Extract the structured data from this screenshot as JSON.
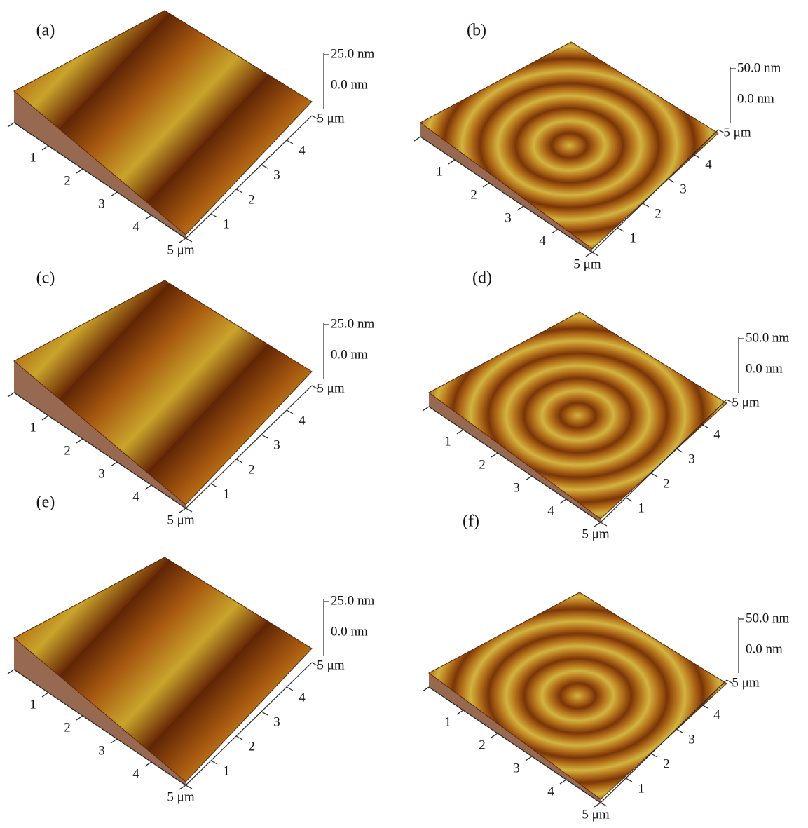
{
  "panels": [
    {
      "label": "(a)",
      "z_labels": [
        "25.0 nm",
        "0.0 nm"
      ],
      "x_tick_labels": [
        "1",
        "2",
        "3",
        "4"
      ],
      "x_end": "5 μm",
      "y_tick_labels": [
        "1",
        "2",
        "3",
        "4"
      ],
      "y_end": "5 μm"
    },
    {
      "label": "(b)",
      "z_labels": [
        "50.0 nm",
        "0.0 nm"
      ],
      "x_tick_labels": [
        "1",
        "2",
        "3",
        "4"
      ],
      "x_end": "5 μm",
      "y_tick_labels": [
        "1",
        "2",
        "3",
        "4"
      ],
      "y_end": "5 μm"
    },
    {
      "label": "(c)",
      "z_labels": [
        "25.0 nm",
        "0.0 nm"
      ],
      "x_tick_labels": [
        "1",
        "2",
        "3",
        "4"
      ],
      "x_end": "5 μm",
      "y_tick_labels": [
        "1",
        "2",
        "3",
        "4"
      ],
      "y_end": "5 μm"
    },
    {
      "label": "(d)",
      "z_labels": [
        "50.0 nm",
        "0.0 nm"
      ],
      "x_tick_labels": [
        "1",
        "2",
        "3",
        "4"
      ],
      "x_end": "5 μm",
      "y_tick_labels": [
        "1",
        "2",
        "3",
        "4"
      ],
      "y_end": "5 μm"
    },
    {
      "label": "(e)",
      "z_labels": [
        "25.0 nm",
        "0.0 nm"
      ],
      "x_tick_labels": [
        "1",
        "2",
        "3",
        "4"
      ],
      "x_end": "5 μm",
      "y_tick_labels": [
        "1",
        "2",
        "3",
        "4"
      ],
      "y_end": "5 μm"
    },
    {
      "label": "(f)",
      "z_labels": [
        "50.0 nm",
        "0.0 nm"
      ],
      "x_tick_labels": [
        "1",
        "2",
        "3",
        "4"
      ],
      "x_end": "5 μm",
      "y_tick_labels": [
        "1",
        "2",
        "3",
        "4"
      ],
      "y_end": "5 μm"
    }
  ]
}
